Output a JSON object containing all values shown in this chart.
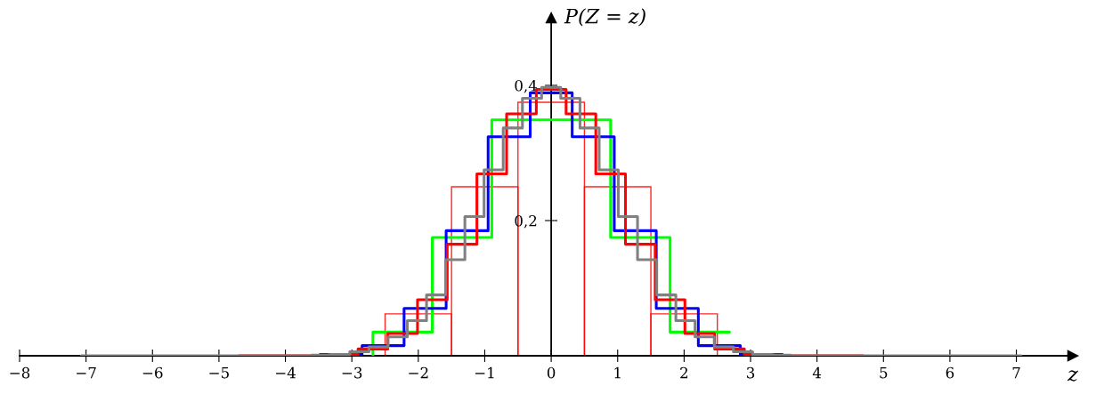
{
  "chart_data": {
    "type": "line",
    "xlabel": "z",
    "ylabel": "P(Z = z)",
    "xlim": [
      -8,
      7.85
    ],
    "ylim": [
      0,
      0.5
    ],
    "xticks": [
      {
        "value": -8,
        "label": "−8"
      },
      {
        "value": -7,
        "label": "−7"
      },
      {
        "value": -6,
        "label": "−6"
      },
      {
        "value": -5,
        "label": "−5"
      },
      {
        "value": -4,
        "label": "−4"
      },
      {
        "value": -3,
        "label": "−3"
      },
      {
        "value": -2,
        "label": "−2"
      },
      {
        "value": -1,
        "label": "−1"
      },
      0,
      1,
      2,
      3,
      4,
      5,
      6,
      7
    ],
    "yticks": [
      {
        "value": 0.2,
        "label": "0,2"
      },
      {
        "value": 0.4,
        "label": "0,4"
      }
    ],
    "series": [
      {
        "type": "bar",
        "color": "#ff0000",
        "x": [
          -2,
          -1,
          0,
          1,
          2
        ],
        "values": [
          0.062,
          0.25,
          0.375,
          0.25,
          0.062
        ]
      },
      {
        "color": "#00ff00",
        "x": [
          -2.683,
          -2.683,
          -1.789,
          -1.789,
          -0.894,
          -0.894,
          0.894,
          0.894,
          1.789,
          1.789,
          2.683
        ],
        "values": [
          0,
          0.035,
          0.035,
          0.175,
          0.175,
          0.349,
          0.349,
          0.175,
          0.175,
          0.035,
          0.035
        ]
      },
      {
        "color": "#0000ff",
        "x": [
          -3.479,
          -3.479,
          -2.846,
          -2.846,
          -2.214,
          -2.214,
          -1.581,
          -1.581,
          -0.949,
          -0.949,
          -0.316,
          -0.316,
          0.316,
          0.316,
          0.949,
          0.949,
          1.581,
          1.581,
          2.214,
          2.214,
          2.846,
          2.846,
          3.479,
          3.479
        ],
        "values": [
          0,
          0.002,
          0.002,
          0.015,
          0.015,
          0.07,
          0.07,
          0.185,
          0.185,
          0.324,
          0.324,
          0.389,
          0.389,
          0.324,
          0.324,
          0.185,
          0.185,
          0.07,
          0.07,
          0.015,
          0.015,
          0.002,
          0.002,
          0
        ]
      },
      {
        "color": "#ff0000",
        "x": [
          -4.696,
          -3.354,
          -3.354,
          -2.907,
          -2.907,
          -2.46,
          -2.46,
          -2.012,
          -2.012,
          -1.565,
          -1.565,
          -1.118,
          -1.118,
          -0.671,
          -0.671,
          -0.224,
          -0.224,
          0.224,
          0.224,
          0.671,
          0.671,
          1.118,
          1.118,
          1.565,
          1.565,
          2.012,
          2.012,
          2.46,
          2.46,
          2.907,
          2.907,
          3.354,
          3.354,
          4.696
        ],
        "values": [
          0,
          0,
          0.002,
          0.002,
          0.01,
          0.01,
          0.033,
          0.033,
          0.083,
          0.083,
          0.165,
          0.165,
          0.269,
          0.269,
          0.358,
          0.358,
          0.394,
          0.394,
          0.358,
          0.358,
          0.269,
          0.269,
          0.165,
          0.165,
          0.083,
          0.083,
          0.033,
          0.033,
          0.01,
          0.01,
          0.002,
          0.002,
          0,
          0
        ]
      },
      {
        "color": "#808080",
        "x": [
          -7.072,
          -3.608,
          -3.608,
          -3.32,
          -3.32,
          -3.031,
          -3.031,
          -2.742,
          -2.742,
          -2.454,
          -2.454,
          -2.165,
          -2.165,
          -1.876,
          -1.876,
          -1.588,
          -1.588,
          -1.299,
          -1.299,
          -1.01,
          -1.01,
          -0.722,
          -0.722,
          -0.433,
          -0.433,
          -0.144,
          -0.144,
          0.144,
          0.144,
          0.433,
          0.433,
          0.722,
          0.722,
          1.01,
          1.01,
          1.299,
          1.299,
          1.588,
          1.588,
          1.876,
          1.876,
          2.165,
          2.165,
          2.454,
          2.454,
          2.742,
          2.742,
          3.031,
          3.031,
          3.32,
          3.32,
          3.608,
          3.608,
          7.072
        ],
        "values": [
          0,
          0,
          0.001,
          0.001,
          0.002,
          0.002,
          0.006,
          0.006,
          0.013,
          0.013,
          0.028,
          0.028,
          0.052,
          0.052,
          0.09,
          0.09,
          0.142,
          0.142,
          0.206,
          0.206,
          0.275,
          0.275,
          0.337,
          0.337,
          0.381,
          0.381,
          0.397,
          0.397,
          0.381,
          0.381,
          0.337,
          0.337,
          0.275,
          0.275,
          0.206,
          0.206,
          0.142,
          0.142,
          0.09,
          0.09,
          0.052,
          0.052,
          0.028,
          0.028,
          0.013,
          0.013,
          0.006,
          0.006,
          0.002,
          0.002,
          0.001,
          0.001,
          0,
          0
        ]
      }
    ]
  }
}
